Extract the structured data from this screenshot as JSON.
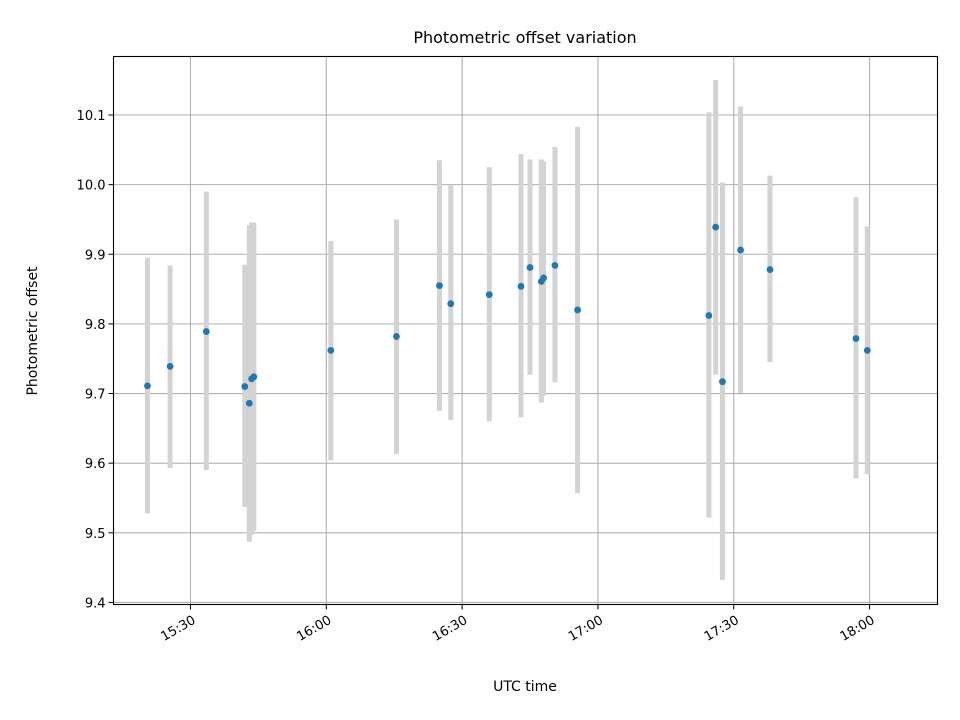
{
  "chart_data": {
    "type": "scatter",
    "title": "Photometric offset variation",
    "xlabel": "UTC time",
    "ylabel": "Photometric offset",
    "xlim": [
      "15:13",
      "18:15"
    ],
    "ylim": [
      9.397,
      10.184
    ],
    "xticks": [
      "15:30",
      "16:00",
      "16:30",
      "17:00",
      "17:30",
      "18:00"
    ],
    "yticks": [
      9.4,
      9.5,
      9.6,
      9.7,
      9.8,
      9.9,
      10.0,
      10.1
    ],
    "grid": true,
    "colors": {
      "point": "#1f77b4",
      "errorbar": "#d3d3d3",
      "grid": "#b0b0b0"
    },
    "points": [
      {
        "t": "15:20.5",
        "y": 9.711,
        "lo": 9.528,
        "hi": 9.895
      },
      {
        "t": "15:25.5",
        "y": 9.739,
        "lo": 9.593,
        "hi": 9.884
      },
      {
        "t": "15:33.5",
        "y": 9.789,
        "lo": 9.59,
        "hi": 9.99
      },
      {
        "t": "15:42",
        "y": 9.71,
        "lo": 9.537,
        "hi": 9.885
      },
      {
        "t": "15:43",
        "y": 9.686,
        "lo": 9.487,
        "hi": 9.942
      },
      {
        "t": "15:43.5",
        "y": 9.721,
        "lo": 9.497,
        "hi": 9.946
      },
      {
        "t": "15:44",
        "y": 9.724,
        "lo": 9.503,
        "hi": 9.945
      },
      {
        "t": "16:01",
        "y": 9.762,
        "lo": 9.604,
        "hi": 9.919
      },
      {
        "t": "16:15.5",
        "y": 9.782,
        "lo": 9.613,
        "hi": 9.95
      },
      {
        "t": "16:25",
        "y": 9.855,
        "lo": 9.675,
        "hi": 10.035
      },
      {
        "t": "16:27.5",
        "y": 9.829,
        "lo": 9.662,
        "hi": 9.999
      },
      {
        "t": "16:36",
        "y": 9.842,
        "lo": 9.66,
        "hi": 10.025
      },
      {
        "t": "16:43",
        "y": 9.854,
        "lo": 9.666,
        "hi": 10.044
      },
      {
        "t": "16:45",
        "y": 9.881,
        "lo": 9.727,
        "hi": 10.036
      },
      {
        "t": "16:47.5",
        "y": 9.861,
        "lo": 9.687,
        "hi": 10.036
      },
      {
        "t": "16:48",
        "y": 9.866,
        "lo": 9.697,
        "hi": 10.033
      },
      {
        "t": "16:50.5",
        "y": 9.884,
        "lo": 9.716,
        "hi": 10.054
      },
      {
        "t": "16:55.5",
        "y": 9.82,
        "lo": 9.557,
        "hi": 10.083
      },
      {
        "t": "17:24.5",
        "y": 9.812,
        "lo": 9.522,
        "hi": 10.104
      },
      {
        "t": "17:26",
        "y": 9.939,
        "lo": 9.727,
        "hi": 10.15
      },
      {
        "t": "17:27.5",
        "y": 9.717,
        "lo": 9.432,
        "hi": 10.003
      },
      {
        "t": "17:31.5",
        "y": 9.906,
        "lo": 9.701,
        "hi": 10.112
      },
      {
        "t": "17:38",
        "y": 9.878,
        "lo": 9.745,
        "hi": 10.013
      },
      {
        "t": "17:57",
        "y": 9.779,
        "lo": 9.578,
        "hi": 9.982
      },
      {
        "t": "17:59.5",
        "y": 9.762,
        "lo": 9.584,
        "hi": 9.94
      }
    ]
  }
}
